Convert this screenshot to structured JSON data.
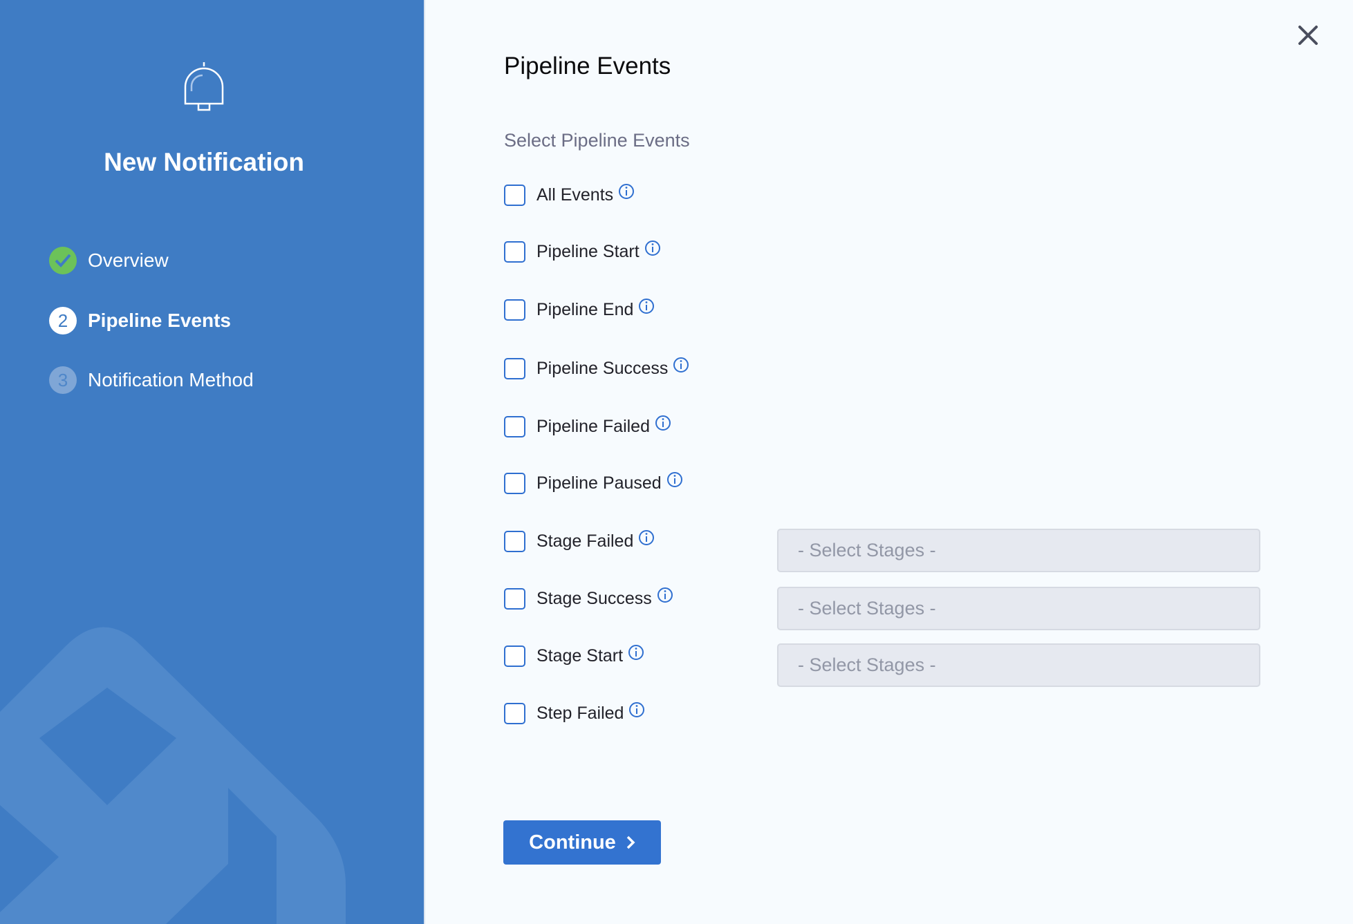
{
  "sidebar": {
    "title": "New Notification",
    "steps": [
      {
        "number": "1",
        "label": "Overview",
        "state": "completed"
      },
      {
        "number": "2",
        "label": "Pipeline Events",
        "state": "active"
      },
      {
        "number": "3",
        "label": "Notification Method",
        "state": "pending"
      }
    ]
  },
  "main": {
    "title": "Pipeline Events",
    "subtitle": "Select Pipeline Events",
    "events": [
      {
        "label": "All Events",
        "checked": false
      },
      {
        "label": "Pipeline Start",
        "checked": false
      },
      {
        "label": "Pipeline End",
        "checked": false
      },
      {
        "label": "Pipeline Success",
        "checked": false
      },
      {
        "label": "Pipeline Failed",
        "checked": false
      },
      {
        "label": "Pipeline Paused",
        "checked": false
      },
      {
        "label": "Stage Failed",
        "checked": false,
        "stage_placeholder": "- Select Stages -"
      },
      {
        "label": "Stage Success",
        "checked": false,
        "stage_placeholder": "- Select Stages -"
      },
      {
        "label": "Stage Start",
        "checked": false,
        "stage_placeholder": "- Select Stages -"
      },
      {
        "label": "Step Failed",
        "checked": false
      }
    ],
    "continue_label": "Continue"
  },
  "colors": {
    "sidebar": "#3f7cc4",
    "accent": "#3373d0",
    "success": "#6cc259"
  }
}
